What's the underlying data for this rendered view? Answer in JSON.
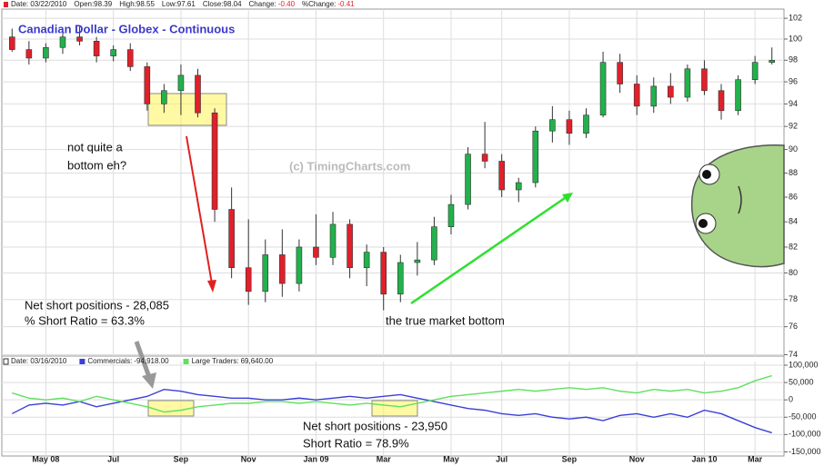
{
  "chart_data": [
    {
      "type": "candlestick",
      "title": "Canadian Dollar - Globex - Continuous",
      "info": [
        "Date: 03/22/2010",
        "Open:98.39",
        "High:98.55",
        "Low:97.61",
        "Close:98.04",
        "Change:",
        "-0.40",
        "%Change:",
        "-0.41"
      ],
      "log_scale": true,
      "grid": true,
      "up_color": "#22b14c",
      "down_color": "#e0202a",
      "ylim": [
        73.9,
        102.9
      ],
      "yticks": [
        74,
        76,
        78,
        80,
        82,
        84,
        86,
        88,
        90,
        92,
        94,
        96,
        98,
        100,
        102
      ],
      "open": [
        100.2,
        99.0,
        98.2,
        99.2,
        100.2,
        99.8,
        98.4,
        99.0,
        97.4,
        94.0,
        95.2,
        96.6,
        93.2,
        85.0,
        80.4,
        78.6,
        81.4,
        79.2,
        82.0,
        81.2,
        83.8,
        80.4,
        81.6,
        78.4,
        80.8,
        81.0,
        83.6,
        85.4,
        89.6,
        89.0,
        86.6,
        87.2,
        91.6,
        92.6,
        91.4,
        93.0,
        97.8,
        95.8,
        93.8,
        95.6,
        94.6,
        97.2,
        95.2,
        93.4,
        96.2,
        97.8
      ],
      "high": [
        101.0,
        99.8,
        99.6,
        100.6,
        101.2,
        100.2,
        99.4,
        99.6,
        97.8,
        95.8,
        97.6,
        97.2,
        93.6,
        86.8,
        84.2,
        82.6,
        83.4,
        82.6,
        84.6,
        84.8,
        84.2,
        82.2,
        82.0,
        81.4,
        82.4,
        84.4,
        86.2,
        90.2,
        92.4,
        89.6,
        87.6,
        92.0,
        93.8,
        93.4,
        93.6,
        98.8,
        98.6,
        96.6,
        96.4,
        96.8,
        97.6,
        98.0,
        95.8,
        96.6,
        98.4,
        99.2
      ],
      "low": [
        98.8,
        97.6,
        97.8,
        98.6,
        99.4,
        97.8,
        97.9,
        97.0,
        93.4,
        93.2,
        93.0,
        92.8,
        84.0,
        79.6,
        77.6,
        77.8,
        78.2,
        78.6,
        80.6,
        80.6,
        79.6,
        79.0,
        77.2,
        77.8,
        79.8,
        80.6,
        83.0,
        85.0,
        88.4,
        86.0,
        85.6,
        86.8,
        90.6,
        90.4,
        91.0,
        92.8,
        95.0,
        93.0,
        93.2,
        94.0,
        94.2,
        94.8,
        92.6,
        93.0,
        95.8,
        97.6
      ],
      "close": [
        99.0,
        98.2,
        99.2,
        100.2,
        99.8,
        98.4,
        99.0,
        97.4,
        94.0,
        95.2,
        96.6,
        93.2,
        85.0,
        80.4,
        78.6,
        81.4,
        79.2,
        82.0,
        81.2,
        83.8,
        80.4,
        81.6,
        78.4,
        80.8,
        81.0,
        83.6,
        85.4,
        89.6,
        89.0,
        86.6,
        87.2,
        91.6,
        92.6,
        91.4,
        93.0,
        97.8,
        95.8,
        93.8,
        95.6,
        94.6,
        97.2,
        95.2,
        93.4,
        96.2,
        97.8,
        98.0
      ],
      "annotations": [
        "not quite a",
        "bottom eh?",
        "Net short positions - 28,085",
        "% Short Ratio = 63.3%",
        "the true market bottom",
        "(c) TimingCharts.com"
      ]
    },
    {
      "type": "line",
      "info": [
        "Date: 03/16/2010"
      ],
      "categories": [
        null,
        null,
        "May 08",
        null,
        null,
        null,
        "Jul",
        null,
        null,
        null,
        "Sep",
        null,
        null,
        null,
        "Nov",
        null,
        null,
        null,
        "Jan 09",
        null,
        null,
        null,
        "Mar",
        null,
        null,
        null,
        "May",
        null,
        null,
        "Jul",
        null,
        null,
        null,
        "Sep",
        null,
        null,
        null,
        "Nov",
        null,
        null,
        null,
        "Jan 10",
        null,
        null,
        "Mar",
        null
      ],
      "grid": true,
      "ylim": [
        -162000,
        110500
      ],
      "yticks": [
        {
          "value": 100000,
          "label": "100,000"
        },
        {
          "value": 50000,
          "label": "50,000"
        },
        0,
        {
          "value": -50000,
          "label": "-50,000"
        },
        {
          "value": -100000,
          "label": "-100,000"
        },
        {
          "value": -150000,
          "label": "-150,000"
        }
      ],
      "series": [
        {
          "name": "Commercials:",
          "legend_value": "-94,918.00",
          "color": "#3b3fd8",
          "values": [
            -40000,
            -15000,
            -10000,
            -15000,
            -5000,
            -20000,
            -10000,
            0,
            10000,
            30000,
            25000,
            15000,
            10000,
            5000,
            5000,
            0,
            0,
            5000,
            0,
            5000,
            10000,
            5000,
            10000,
            15000,
            5000,
            -5000,
            -15000,
            -25000,
            -30000,
            -40000,
            -45000,
            -40000,
            -50000,
            -55000,
            -50000,
            -60000,
            -45000,
            -40000,
            -50000,
            -40000,
            -50000,
            -30000,
            -40000,
            -60000,
            -80000,
            -94918
          ]
        },
        {
          "name": "Large Traders:",
          "legend_value": "69,640.00",
          "color": "#5fe05f",
          "values": [
            20000,
            5000,
            0,
            5000,
            -5000,
            10000,
            0,
            -10000,
            -20000,
            -35000,
            -30000,
            -20000,
            -15000,
            -10000,
            -10000,
            -5000,
            -5000,
            -10000,
            -5000,
            -10000,
            -15000,
            -10000,
            -15000,
            -20000,
            -10000,
            0,
            10000,
            15000,
            20000,
            25000,
            30000,
            25000,
            30000,
            35000,
            30000,
            35000,
            25000,
            20000,
            30000,
            25000,
            30000,
            20000,
            25000,
            35000,
            55000,
            69640
          ]
        }
      ],
      "annotations": [
        "Net short positions - 23,950",
        "Short Ratio = 78.9%"
      ]
    }
  ]
}
